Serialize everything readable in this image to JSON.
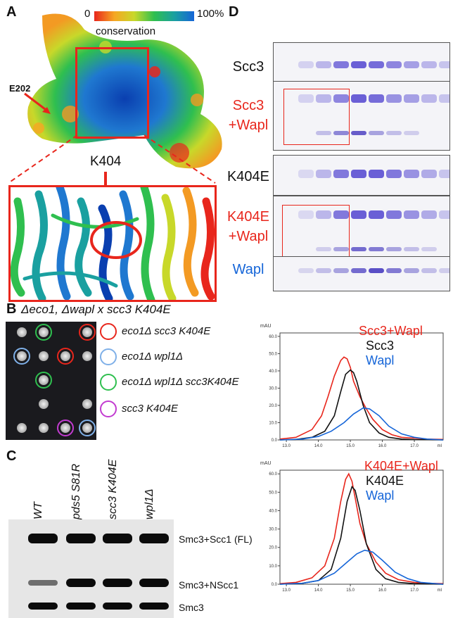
{
  "panels": {
    "A": "A",
    "B": "B",
    "C": "C",
    "D": "D"
  },
  "panel_a": {
    "scale_min": "0",
    "scale_max": "100%",
    "scale_label": "conservation",
    "residue_e202": "E202",
    "residue_k404": "K404"
  },
  "panel_b": {
    "title": "Δeco1, Δwapl x scc3 K404E",
    "legend": [
      {
        "label": "eco1Δ scc3 K404E",
        "color": "#e8261c"
      },
      {
        "label": "eco1Δ wpl1Δ",
        "color": "#7fb0e8"
      },
      {
        "label": "eco1Δ wpl1Δ scc3K404E",
        "color": "#2fbf4f"
      },
      {
        "label": "scc3 K404E",
        "color": "#c23bd0"
      }
    ]
  },
  "panel_c": {
    "lanes": [
      "WT",
      "pds5 S81R",
      "scc3 K404E",
      "wpl1Δ"
    ],
    "bands": [
      "Smc3+Scc1 (FL)",
      "Smc3+NScc1",
      "Smc3"
    ]
  },
  "panel_d": {
    "gels": [
      "Scc3",
      "Scc3 +Wapl",
      "K404E",
      "K404E +Wapl",
      "Wapl"
    ]
  },
  "chart_data": [
    {
      "type": "line",
      "ylabel": "mAU",
      "xlabel": "ml",
      "x_ticks": [
        "13.0",
        "14.0",
        "15.0",
        "16.0",
        "17.0"
      ],
      "y_ticks": [
        "0.0",
        "10.0",
        "20.0",
        "30.0",
        "40.0",
        "50.0",
        "60.0"
      ],
      "xlim": [
        12.8,
        17.9
      ],
      "ylim": [
        0,
        62
      ],
      "series": [
        {
          "name": "Scc3+Wapl",
          "color": "#e8261c",
          "x": [
            12.8,
            13.3,
            13.8,
            14.1,
            14.3,
            14.5,
            14.7,
            14.8,
            14.9,
            15.0,
            15.1,
            15.3,
            15.5,
            15.7,
            16.0,
            16.3,
            16.6,
            17.0,
            17.4,
            17.9
          ],
          "y": [
            0.5,
            1.5,
            6,
            14,
            25,
            37,
            46,
            48,
            47,
            42,
            34,
            25,
            18,
            12,
            6,
            3,
            1.5,
            1,
            0.5,
            0.3
          ]
        },
        {
          "name": "Scc3",
          "color": "#111111",
          "x": [
            12.8,
            13.3,
            13.8,
            14.2,
            14.5,
            14.7,
            14.85,
            15.0,
            15.1,
            15.2,
            15.4,
            15.6,
            15.9,
            16.2,
            16.6,
            17.0,
            17.9
          ],
          "y": [
            0,
            0.3,
            1.5,
            5,
            14,
            28,
            38,
            40.5,
            39,
            34,
            20,
            10,
            4,
            1.5,
            0.5,
            0.2,
            0
          ]
        },
        {
          "name": "Wapl",
          "color": "#1565d8",
          "x": [
            12.8,
            13.5,
            14.0,
            14.4,
            14.8,
            15.1,
            15.4,
            15.6,
            15.9,
            16.2,
            16.6,
            17.0,
            17.4,
            17.9
          ],
          "y": [
            0,
            0.5,
            2,
            5,
            10,
            15,
            18.5,
            18,
            14,
            8,
            3.5,
            1.5,
            0.5,
            0
          ]
        }
      ]
    },
    {
      "type": "line",
      "ylabel": "mAU",
      "xlabel": "ml",
      "x_ticks": [
        "13.0",
        "14.0",
        "15.0",
        "16.0",
        "17.0"
      ],
      "y_ticks": [
        "0.0",
        "10.0",
        "20.0",
        "30.0",
        "40.0",
        "50.0",
        "60.0"
      ],
      "xlim": [
        12.8,
        17.9
      ],
      "ylim": [
        0,
        62
      ],
      "series": [
        {
          "name": "K404E+Wapl",
          "color": "#e8261c",
          "x": [
            12.8,
            13.3,
            13.8,
            14.2,
            14.5,
            14.7,
            14.85,
            14.95,
            15.05,
            15.15,
            15.3,
            15.5,
            15.8,
            16.1,
            16.5,
            17.0,
            17.5,
            17.9
          ],
          "y": [
            0.3,
            1,
            3.5,
            10,
            25,
            45,
            57,
            60,
            56,
            47,
            33,
            22,
            12,
            6,
            2.5,
            1,
            0.5,
            0.3
          ]
        },
        {
          "name": "K404E",
          "color": "#111111",
          "x": [
            12.8,
            13.5,
            14.0,
            14.4,
            14.7,
            14.9,
            15.05,
            15.15,
            15.3,
            15.5,
            15.8,
            16.1,
            16.5,
            17.0,
            17.9
          ],
          "y": [
            0,
            0.5,
            2,
            8,
            25,
            45,
            53,
            51,
            40,
            22,
            8,
            3,
            1,
            0.3,
            0
          ]
        },
        {
          "name": "Wapl",
          "color": "#1565d8",
          "x": [
            12.8,
            13.5,
            14.0,
            14.5,
            14.9,
            15.2,
            15.45,
            15.7,
            16.0,
            16.4,
            16.8,
            17.2,
            17.9
          ],
          "y": [
            0,
            0.5,
            2,
            6,
            12,
            16.5,
            18.5,
            17.5,
            13,
            6.5,
            3,
            1,
            0
          ]
        }
      ]
    }
  ]
}
